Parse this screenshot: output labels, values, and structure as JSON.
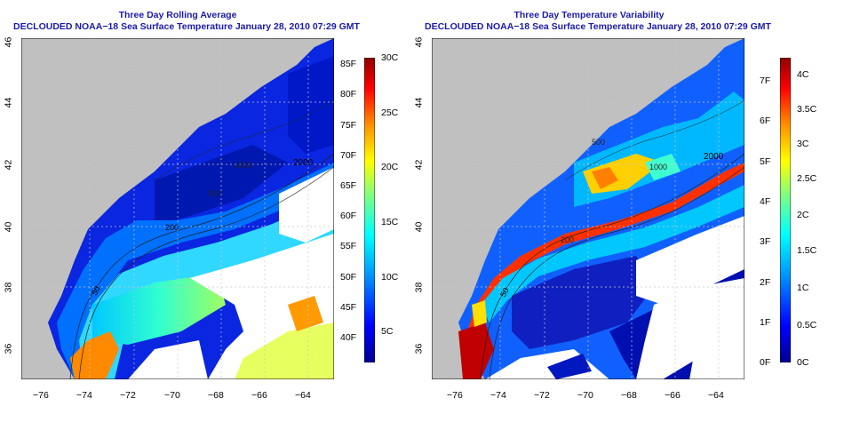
{
  "left": {
    "title_line1": "Three Day Rolling Average",
    "title_line2": "DECLOUDED NOAA−18 Sea Surface Temperature January 28, 2010 07:29 GMT",
    "x_ticks": [
      "−76",
      "−74",
      "−72",
      "−70",
      "−68",
      "−66",
      "−64"
    ],
    "y_ticks": [
      "36",
      "38",
      "40",
      "42",
      "44",
      "46"
    ],
    "colorbar_f": [
      "85F",
      "80F",
      "75F",
      "70F",
      "65F",
      "60F",
      "55F",
      "50F",
      "45F",
      "40F"
    ],
    "colorbar_c": [
      "30C",
      "25C",
      "20C",
      "15C",
      "10C",
      "5C"
    ],
    "contour_labels": [
      "2000",
      "200",
      "50",
      "1000",
      "500"
    ]
  },
  "right": {
    "title_line1": "Three Day Temperature Variability",
    "title_line2": "DECLOUDED NOAA−18 Sea Surface Temperature January 28, 2010 07:29 GMT",
    "x_ticks": [
      "−76",
      "−74",
      "−72",
      "−70",
      "−68",
      "−66",
      "−64"
    ],
    "y_ticks": [
      "36",
      "38",
      "40",
      "42",
      "44",
      "46"
    ],
    "colorbar_f": [
      "7F",
      "6F",
      "5F",
      "4F",
      "3F",
      "2F",
      "1F",
      "0F"
    ],
    "colorbar_c": [
      "4C",
      "3.5C",
      "3C",
      "2.5C",
      "2C",
      "1.5C",
      "1C",
      "0.5C",
      "0C"
    ],
    "contour_labels": [
      "2000",
      "1000",
      "500",
      "200",
      "50"
    ]
  },
  "colors": {
    "land": "#c0c0c0",
    "no_data": "#ffffff",
    "title": "#1a1aa8",
    "scale": [
      "#00008f",
      "#0000ff",
      "#00a0ff",
      "#00ffff",
      "#80ff80",
      "#ffff00",
      "#ff9000",
      "#ff0000",
      "#8f0000"
    ]
  }
}
